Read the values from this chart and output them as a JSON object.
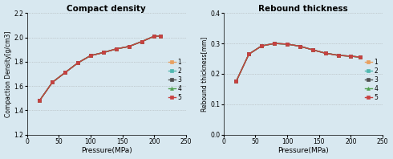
{
  "left": {
    "title": "Compact density",
    "xlabel": "Pressure(MPa)",
    "ylabel": "Compaction Density[g/cm3]",
    "xlim": [
      0,
      250
    ],
    "ylim": [
      1.2,
      2.2
    ],
    "yticks": [
      1.2,
      1.4,
      1.6,
      1.8,
      2.0,
      2.2
    ],
    "xticks": [
      0,
      50,
      100,
      150,
      200,
      250
    ],
    "pressure": [
      20,
      40,
      60,
      80,
      100,
      120,
      140,
      160,
      180,
      200,
      210
    ],
    "series": {
      "1": [
        1.48,
        1.63,
        1.71,
        1.79,
        1.85,
        1.875,
        1.905,
        1.925,
        1.965,
        2.01,
        2.01
      ],
      "2": [
        1.48,
        1.63,
        1.71,
        1.79,
        1.85,
        1.875,
        1.905,
        1.925,
        1.965,
        2.01,
        2.01
      ],
      "3": [
        1.48,
        1.63,
        1.71,
        1.79,
        1.85,
        1.875,
        1.905,
        1.925,
        1.965,
        2.01,
        2.01
      ],
      "4": [
        1.48,
        1.63,
        1.71,
        1.79,
        1.85,
        1.875,
        1.905,
        1.925,
        1.965,
        2.01,
        2.01
      ],
      "5": [
        1.48,
        1.63,
        1.71,
        1.79,
        1.85,
        1.875,
        1.905,
        1.925,
        1.965,
        2.01,
        2.01
      ]
    },
    "colors": {
      "1": "#e8a060",
      "2": "#50b8b0",
      "3": "#505050",
      "4": "#50a050",
      "5": "#c84040"
    },
    "markers": {
      "1": "s",
      "2": "s",
      "3": "s",
      "4": "^",
      "5": "s"
    },
    "legend_labels": [
      "1",
      "2",
      "3",
      "4",
      "5"
    ]
  },
  "right": {
    "title": "Rebound thickness",
    "xlabel": "Pressure(MPa)",
    "ylabel": "Rebound thickness[mm]",
    "xlim": [
      0,
      250
    ],
    "ylim": [
      0.0,
      0.4
    ],
    "yticks": [
      0.0,
      0.1,
      0.2,
      0.3,
      0.4
    ],
    "xticks": [
      0,
      50,
      100,
      150,
      200,
      250
    ],
    "pressure": [
      20,
      40,
      60,
      80,
      100,
      120,
      140,
      160,
      180,
      200,
      215
    ],
    "series": {
      "1": [
        0.175,
        0.265,
        0.292,
        0.3,
        0.298,
        0.291,
        0.279,
        0.268,
        0.261,
        0.258,
        0.255
      ],
      "2": [
        0.175,
        0.265,
        0.292,
        0.3,
        0.298,
        0.291,
        0.279,
        0.268,
        0.261,
        0.258,
        0.255
      ],
      "3": [
        0.175,
        0.265,
        0.292,
        0.3,
        0.298,
        0.291,
        0.279,
        0.268,
        0.261,
        0.258,
        0.255
      ],
      "4": [
        0.175,
        0.265,
        0.292,
        0.3,
        0.298,
        0.291,
        0.279,
        0.268,
        0.261,
        0.258,
        0.255
      ],
      "5": [
        0.175,
        0.265,
        0.292,
        0.3,
        0.298,
        0.291,
        0.279,
        0.268,
        0.261,
        0.258,
        0.255
      ]
    },
    "colors": {
      "1": "#e8a060",
      "2": "#50b8b0",
      "3": "#505050",
      "4": "#50a050",
      "5": "#c84040"
    },
    "markers": {
      "1": "s",
      "2": "s",
      "3": "s",
      "4": "^",
      "5": "s"
    },
    "legend_labels": [
      "1",
      "2",
      "3",
      "4",
      "5"
    ]
  },
  "bg_color": "#d8e8f0"
}
